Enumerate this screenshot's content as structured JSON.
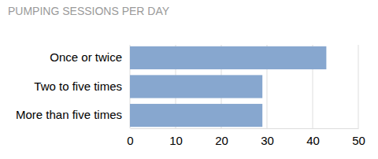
{
  "chart_data": {
    "type": "bar",
    "title": "PUMPING SESSIONS PER DAY",
    "orientation": "horizontal",
    "categories": [
      "Once or twice",
      "Two to five times",
      "More than five times"
    ],
    "values": [
      43,
      29,
      29
    ],
    "color": "#87a7cf",
    "xlim": [
      0,
      50
    ],
    "xticks": [
      0,
      10,
      20,
      30,
      40,
      50
    ],
    "grid": true
  }
}
